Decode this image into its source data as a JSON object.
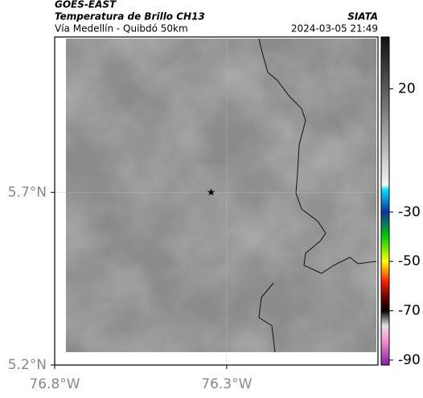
{
  "header": {
    "satellite": "GOES-EAST",
    "product": "Temperatura de Brillo CH13",
    "region": "Vía Medellín - Quibdó 50km",
    "source": "SIATA",
    "datetime": "2024-03-05 21:49"
  },
  "map": {
    "xlim": [
      -76.8,
      -75.86
    ],
    "ylim": [
      5.2,
      6.15
    ],
    "xticks": [
      {
        "value": -76.8,
        "label": "76.8°W"
      },
      {
        "value": -76.3,
        "label": "76.3°W"
      }
    ],
    "yticks": [
      {
        "value": 5.2,
        "label": "5.2°N"
      },
      {
        "value": 5.7,
        "label": "5.7°N"
      }
    ],
    "grid": true,
    "marker": {
      "lon": -76.345,
      "lat": 5.7
    }
  },
  "colorbar": {
    "clim": [
      -92,
      41
    ],
    "ticks": [
      20,
      -30,
      -50,
      -70,
      -90
    ],
    "stops": [
      {
        "value": 41,
        "color": "#111111"
      },
      {
        "value": 20,
        "color": "#5a5a5a"
      },
      {
        "value": 0,
        "color": "#a8a8a8"
      },
      {
        "value": -19,
        "color": "#f4f4f4"
      },
      {
        "value": -21,
        "color": "#00e0ff"
      },
      {
        "value": -30,
        "color": "#1030a0"
      },
      {
        "value": -40,
        "color": "#00d000"
      },
      {
        "value": -50,
        "color": "#ffff00"
      },
      {
        "value": -58,
        "color": "#ff2000"
      },
      {
        "value": -65,
        "color": "#600000"
      },
      {
        "value": -70,
        "color": "#000000"
      },
      {
        "value": -76,
        "color": "#e0e0e0"
      },
      {
        "value": -82,
        "color": "#ff90d0"
      },
      {
        "value": -92,
        "color": "#8020a0"
      }
    ]
  }
}
